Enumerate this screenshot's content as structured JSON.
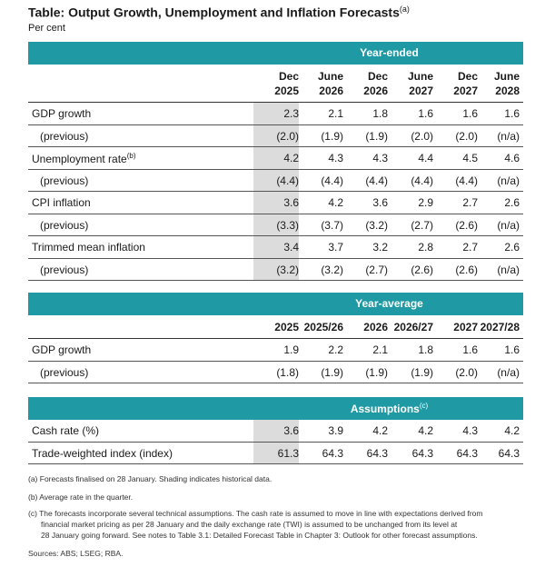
{
  "title": "Table: Output Growth, Unemployment and Inflation Forecasts",
  "title_note": "(a)",
  "unit": "Per cent",
  "section1": {
    "band_label": "Year-ended",
    "headers": [
      {
        "l1": "Dec",
        "l2": "2025"
      },
      {
        "l1": "June",
        "l2": "2026"
      },
      {
        "l1": "Dec",
        "l2": "2026"
      },
      {
        "l1": "June",
        "l2": "2027"
      },
      {
        "l1": "Dec",
        "l2": "2027"
      },
      {
        "l1": "June",
        "l2": "2028"
      }
    ],
    "rows": [
      {
        "label": "GDP growth",
        "note": "",
        "values": [
          "2.3",
          "2.1",
          "1.8",
          "1.6",
          "1.6",
          "1.6"
        ]
      },
      {
        "label": "(previous)",
        "note": "",
        "values": [
          "(2.0)",
          "(1.9)",
          "(1.9)",
          "(2.0)",
          "(2.0)",
          "(n/a)"
        ]
      },
      {
        "label": "Unemployment rate",
        "note": "(b)",
        "values": [
          "4.2",
          "4.3",
          "4.3",
          "4.4",
          "4.5",
          "4.6"
        ]
      },
      {
        "label": "(previous)",
        "note": "",
        "values": [
          "(4.4)",
          "(4.4)",
          "(4.4)",
          "(4.4)",
          "(4.4)",
          "(n/a)"
        ]
      },
      {
        "label": "CPI inflation",
        "note": "",
        "values": [
          "3.6",
          "4.2",
          "3.6",
          "2.9",
          "2.7",
          "2.6"
        ]
      },
      {
        "label": "(previous)",
        "note": "",
        "values": [
          "(3.3)",
          "(3.7)",
          "(3.2)",
          "(2.7)",
          "(2.6)",
          "(n/a)"
        ]
      },
      {
        "label": "Trimmed mean inflation",
        "note": "",
        "values": [
          "3.4",
          "3.7",
          "3.2",
          "2.8",
          "2.7",
          "2.6"
        ]
      },
      {
        "label": "(previous)",
        "note": "",
        "values": [
          "(3.2)",
          "(3.2)",
          "(2.7)",
          "(2.6)",
          "(2.6)",
          "(n/a)"
        ]
      }
    ]
  },
  "section2": {
    "band_label": "Year-average",
    "headers": [
      "2025",
      "2025/26",
      "2026",
      "2026/27",
      "2027",
      "2027/28"
    ],
    "rows": [
      {
        "label": "GDP growth",
        "values": [
          "1.9",
          "2.2",
          "2.1",
          "1.8",
          "1.6",
          "1.6"
        ]
      },
      {
        "label": "(previous)",
        "values": [
          "(1.8)",
          "(1.9)",
          "(1.9)",
          "(1.9)",
          "(2.0)",
          "(n/a)"
        ]
      }
    ]
  },
  "section3": {
    "band_label": "Assumptions",
    "band_note": "(c)",
    "rows": [
      {
        "label": "Cash rate (%)",
        "values": [
          "3.6",
          "3.9",
          "4.2",
          "4.2",
          "4.3",
          "4.2"
        ]
      },
      {
        "label": "Trade-weighted index (index)",
        "values": [
          "61.3",
          "64.3",
          "64.3",
          "64.3",
          "64.3",
          "64.3"
        ]
      }
    ]
  },
  "notes": {
    "a": "(a)  Forecasts finalised on 28 January. Shading indicates historical data.",
    "b": "(b)  Average rate in the quarter.",
    "c1": "(c)  The forecasts incorporate several technical assumptions. The cash rate is assumed to move in line with expectations derived from",
    "c2": "financial market pricing as per 28 January and the daily exchange rate (TWI) is assumed to be unchanged from its level at",
    "c3": "28 January going forward. See notes to Table 3.1: Detailed Forecast Table in Chapter 3: Outlook for other forecast assumptions.",
    "sources": "Sources: ABS; LSEG; RBA."
  },
  "colors": {
    "band": "#1f9aa5",
    "shade": "#dcdcdc"
  }
}
